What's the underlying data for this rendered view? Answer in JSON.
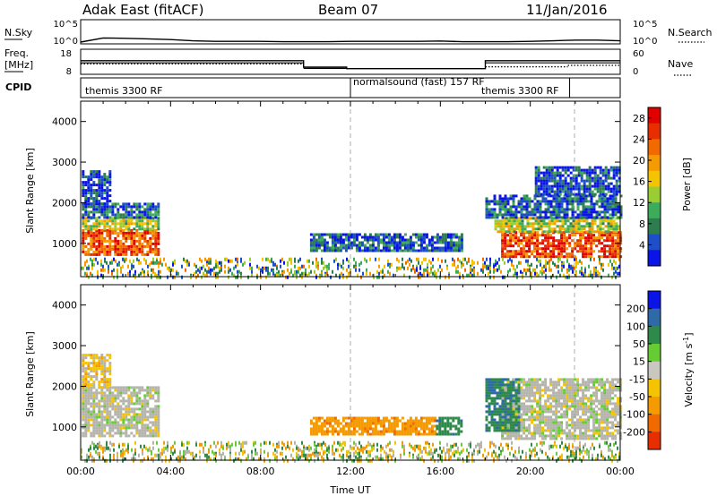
{
  "header": {
    "title": "Adak East (fitACF)",
    "beam": "Beam 07",
    "date": "11/Jan/2016"
  },
  "colors": {
    "power_scale": [
      "#0a14e6",
      "#1e4fc8",
      "#2e7d4f",
      "#3cab5a",
      "#9acd32",
      "#f5c400",
      "#f59a00",
      "#f06a00",
      "#e62e00",
      "#e00000"
    ],
    "velocity_scale": [
      "#0a14e6",
      "#2e6aa8",
      "#2e8a4a",
      "#66cc33",
      "#c8c8c0",
      "#f5c400",
      "#f59a00",
      "#f06a00",
      "#e62e00"
    ],
    "ground_scatter": "#b4b4ac",
    "cpid_dotted_line": "#888888"
  },
  "chart_data": [
    {
      "type": "line",
      "panel": "N.Sky / N.Search",
      "left_label": "N.Sky",
      "right_label": "N.Search",
      "left_ticks": [
        "10^5",
        "10^0"
      ],
      "right_ticks": [
        "10^5",
        "10^0"
      ],
      "scale": "log",
      "x": [
        "00:00",
        "01:00",
        "02:00",
        "03:00",
        "04:00",
        "05:00",
        "06:00",
        "07:00",
        "08:00",
        "09:00",
        "10:00",
        "11:00",
        "12:00",
        "13:00",
        "14:00",
        "15:00",
        "16:00",
        "17:00",
        "18:00",
        "19:00",
        "20:00",
        "21:00",
        "22:00",
        "23:00",
        "24:00"
      ],
      "series": [
        {
          "values": [
            1,
            10,
            8,
            6,
            4,
            2,
            1.5,
            1.5,
            1.5,
            1.2,
            1.2,
            1.2,
            1.5,
            1.5,
            1.5,
            1.5,
            1.8,
            1.2,
            1.2,
            1.2,
            1.5,
            2,
            3,
            3,
            2
          ]
        }
      ]
    },
    {
      "type": "line",
      "panel": "Freq. / Nave",
      "left_label": "Freq.",
      "left_unit": "[MHz]",
      "right_label": "Nave",
      "left_ticks": [
        18,
        8
      ],
      "right_ticks": [
        60,
        0
      ],
      "ylim": [
        8,
        18
      ],
      "ylim_right": [
        0,
        60
      ],
      "freq_steps": [
        {
          "from": "00:00",
          "to": "09:55",
          "value": 13.5
        },
        {
          "from": "09:55",
          "to": "11:50",
          "value": 10.5
        },
        {
          "from": "11:50",
          "to": "18:00",
          "value": 9.8
        },
        {
          "from": "18:00",
          "to": "24:00",
          "value": 13.5
        }
      ],
      "freq_low_steps": [
        {
          "from": "00:00",
          "to": "09:55",
          "value": 12.5
        },
        {
          "from": "09:55",
          "to": "11:50",
          "value": 9.9
        },
        {
          "from": "18:00",
          "to": "24:00",
          "value": 12.5
        }
      ],
      "nave_dotted": [
        {
          "from": "00:00",
          "to": "09:55",
          "value": 24
        },
        {
          "from": "18:00",
          "to": "21:40",
          "value": 16
        },
        {
          "from": "21:40",
          "to": "24:00",
          "value": 20
        }
      ]
    },
    {
      "type": "table",
      "panel": "CPID",
      "label": "CPID",
      "segments": [
        {
          "from": "00:00",
          "to": "12:00",
          "name": "themis 3300 RF"
        },
        {
          "from": "12:00",
          "to": "21:45",
          "name": "normalsound (fast) 157 RF"
        },
        {
          "from": "18:00",
          "to": "21:45",
          "name": "themis 3300 RF"
        }
      ],
      "boundaries": [
        "12:00",
        "21:45"
      ]
    },
    {
      "type": "heatmap",
      "panel": "Power",
      "ylabel": "Slant Range [km]",
      "ylim": [
        180,
        4500
      ],
      "yticks": [
        1000,
        2000,
        3000,
        4000
      ],
      "colorbar_label": "Power [dB]",
      "colorbar_ticks": [
        4,
        8,
        12,
        16,
        20,
        24,
        28
      ],
      "colorbar_range": [
        0,
        30
      ],
      "regions": [
        {
          "t0": 0.05,
          "t1": 3.45,
          "r0": 750,
          "r1": 1350,
          "value": 24
        },
        {
          "t0": 0.05,
          "t1": 3.45,
          "r0": 1350,
          "r1": 1650,
          "value": 14
        },
        {
          "t0": 0.05,
          "t1": 3.45,
          "r0": 1650,
          "r1": 2000,
          "value": 6
        },
        {
          "t0": 0.05,
          "t1": 1.3,
          "r0": 2000,
          "r1": 2800,
          "value": 4
        },
        {
          "t0": 10.2,
          "t1": 16.9,
          "r0": 850,
          "r1": 1250,
          "value": 5
        },
        {
          "t0": 18.7,
          "t1": 24.0,
          "r0": 700,
          "r1": 1300,
          "value": 24
        },
        {
          "t0": 18.4,
          "t1": 24.0,
          "r0": 1300,
          "r1": 1650,
          "value": 14
        },
        {
          "t0": 18.0,
          "t1": 24.0,
          "r0": 1650,
          "r1": 2200,
          "value": 5
        },
        {
          "t0": 20.2,
          "t1": 24.0,
          "r0": 2200,
          "r1": 2900,
          "value": 4
        },
        {
          "t0": 0.0,
          "t1": 24.0,
          "r0": 180,
          "r1": 650,
          "value": 10
        }
      ],
      "xlabel": "",
      "x_ticks": []
    },
    {
      "type": "heatmap",
      "panel": "Velocity",
      "ylabel": "Slant Range [km]",
      "ylim": [
        180,
        4500
      ],
      "yticks": [
        1000,
        2000,
        3000,
        4000
      ],
      "colorbar_label": "Velocity [m s-1]",
      "colorbar_label_parts": {
        "main": "Velocity [m s",
        "sup": "-1",
        "end": "]"
      },
      "colorbar_ticks": [
        200,
        100,
        50,
        15,
        -15,
        -50,
        -100,
        -200
      ],
      "regions": [
        {
          "t0": 0.05,
          "t1": 3.45,
          "r0": 750,
          "r1": 2000,
          "value": 0
        },
        {
          "t0": 0.05,
          "t1": 1.3,
          "r0": 2000,
          "r1": 2800,
          "value": -20
        },
        {
          "t0": 10.2,
          "t1": 15.8,
          "r0": 850,
          "r1": 1250,
          "value": -60
        },
        {
          "t0": 15.8,
          "t1": 16.9,
          "r0": 850,
          "r1": 1250,
          "value": 60
        },
        {
          "t0": 18.7,
          "t1": 24.0,
          "r0": 700,
          "r1": 2200,
          "value": 0
        },
        {
          "t0": 18.0,
          "t1": 19.5,
          "r0": 900,
          "r1": 2200,
          "value": 70
        },
        {
          "t0": 0.0,
          "t1": 24.0,
          "r0": 180,
          "r1": 650,
          "value": -40
        }
      ],
      "xlabel": "Time UT",
      "x_ticks": [
        "00:00",
        "04:00",
        "08:00",
        "12:00",
        "16:00",
        "20:00",
        "00:00"
      ],
      "x_tick_hours": [
        0,
        4,
        8,
        12,
        16,
        20,
        24
      ]
    }
  ]
}
